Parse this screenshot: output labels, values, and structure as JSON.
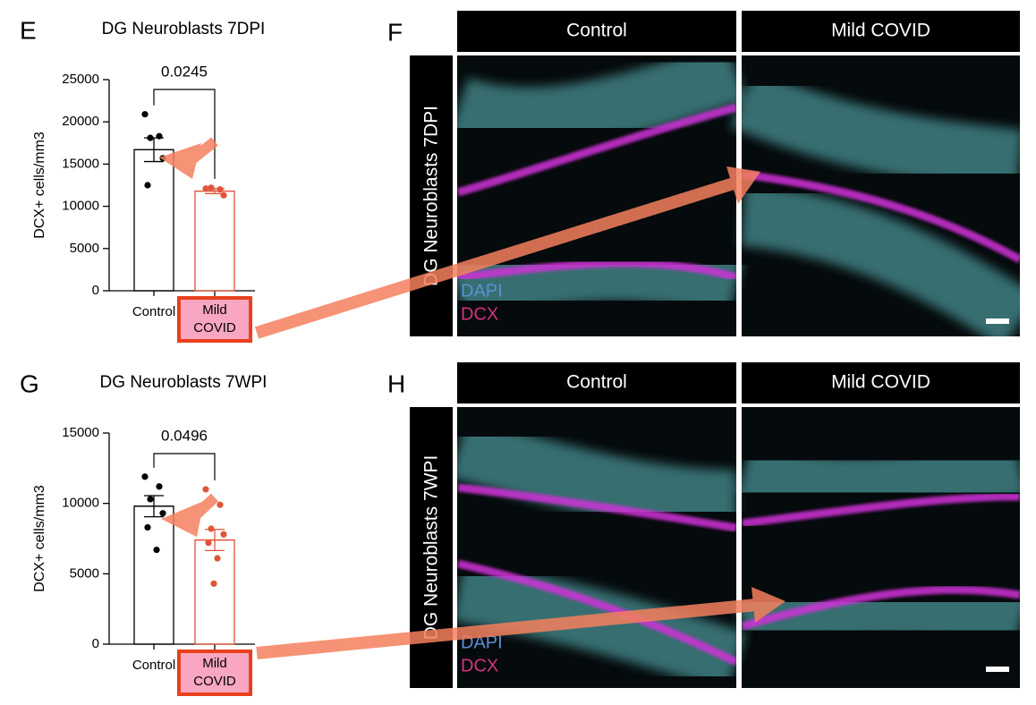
{
  "chart_data": [
    {
      "type": "bar",
      "panel_label": "E",
      "title": "DG Neuroblasts 7DPI",
      "ylabel": "DCX+ cells/mm3",
      "categories": [
        "Control",
        "Mild COVID"
      ],
      "values": [
        16700,
        11800
      ],
      "errors": [
        1400,
        300
      ],
      "points": [
        [
          20900,
          18300,
          18100,
          15700,
          12500
        ],
        [
          12100,
          12000,
          12200,
          11300
        ]
      ],
      "colors": [
        "#000000",
        "#e0553a"
      ],
      "annotation": "0.0245",
      "ylim": [
        0,
        25000
      ],
      "yticks": [
        0,
        5000,
        10000,
        15000,
        20000,
        25000
      ]
    },
    {
      "type": "bar",
      "panel_label": "G",
      "title": "DG Neuroblasts 7WPI",
      "ylabel": "DCX+ cells/mm3",
      "categories": [
        "Control",
        "Mild COVID"
      ],
      "values": [
        9800,
        7400
      ],
      "errors": [
        750,
        750
      ],
      "points": [
        [
          11900,
          11200,
          10300,
          9300,
          8300,
          6700
        ],
        [
          11000,
          9900,
          8200,
          7800,
          7200,
          6100,
          4300
        ]
      ],
      "colors": [
        "#000000",
        "#e0553a"
      ],
      "annotation": "0.0496",
      "ylim": [
        0,
        15000
      ],
      "yticks": [
        0,
        5000,
        10000,
        15000
      ]
    }
  ],
  "image_panels": [
    {
      "label": "F",
      "columns": [
        "Control",
        "Mild COVID"
      ],
      "row_label": "DG Neuroblasts 7DPI",
      "channels": [
        "DAPI",
        "DCX"
      ]
    },
    {
      "label": "H",
      "columns": [
        "Control",
        "Mild COVID"
      ],
      "row_label": "DG Neuroblasts 7WPI",
      "channels": [
        "DAPI",
        "DCX"
      ]
    }
  ]
}
